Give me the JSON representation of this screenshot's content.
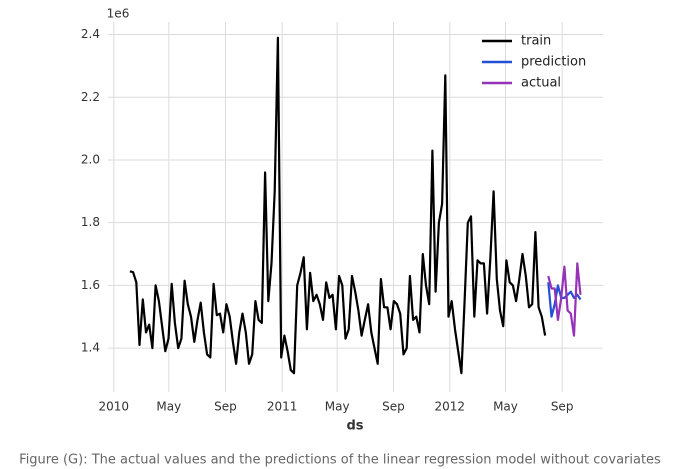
{
  "chart_data": {
    "type": "line",
    "xlabel": "ds",
    "y_offset_label": "1e6",
    "xlim": [
      -6.8,
      147
    ],
    "ylim": [
      1.26,
      2.44
    ],
    "xticks": [
      {
        "value": -5,
        "label": "2010"
      },
      {
        "value": 12.1,
        "label": "May"
      },
      {
        "value": 29.7,
        "label": "Sep"
      },
      {
        "value": 47.3,
        "label": "2011"
      },
      {
        "value": 64.4,
        "label": "May"
      },
      {
        "value": 81.9,
        "label": "Sep"
      },
      {
        "value": 99.4,
        "label": "2012"
      },
      {
        "value": 116.7,
        "label": "May"
      },
      {
        "value": 134.3,
        "label": "Sep"
      }
    ],
    "yticks": [
      1.4,
      1.6,
      1.8,
      {
        "value": 2,
        "label": "2.0"
      },
      2.2,
      2.4
    ],
    "grid": true,
    "legend": "upper right",
    "series": [
      {
        "name": "train",
        "color": "#000000",
        "x": [
          0,
          1,
          2,
          3,
          4,
          5,
          6,
          7,
          8,
          9,
          10,
          11,
          12,
          13,
          14,
          15,
          16,
          17,
          18,
          19,
          20,
          21,
          22,
          23,
          24,
          25,
          26,
          27,
          28,
          29,
          30,
          31,
          32,
          33,
          34,
          35,
          36,
          37,
          38,
          39,
          40,
          41,
          42,
          43,
          44,
          45,
          46,
          47,
          48,
          49,
          50,
          51,
          52,
          53,
          54,
          55,
          56,
          57,
          58,
          59,
          60,
          61,
          62,
          63,
          64,
          65,
          66,
          67,
          68,
          69,
          70,
          71,
          72,
          73,
          74,
          75,
          76,
          77,
          78,
          79,
          80,
          81,
          82,
          83,
          84,
          85,
          86,
          87,
          88,
          89,
          90,
          91,
          92,
          93,
          94,
          95,
          96,
          97,
          98,
          99,
          100,
          101,
          102,
          103,
          104,
          105,
          106,
          107,
          108,
          109,
          110,
          111,
          112,
          113,
          114,
          115,
          116,
          117,
          118,
          119,
          120,
          121,
          122,
          123,
          124,
          125,
          126,
          127,
          128,
          129
        ],
        "values": [
          1.645,
          1.642,
          1.61,
          1.41,
          1.555,
          1.45,
          1.475,
          1.4,
          1.6,
          1.55,
          1.47,
          1.39,
          1.43,
          1.605,
          1.48,
          1.4,
          1.43,
          1.615,
          1.54,
          1.5,
          1.42,
          1.49,
          1.545,
          1.45,
          1.38,
          1.37,
          1.605,
          1.505,
          1.51,
          1.45,
          1.54,
          1.5,
          1.42,
          1.35,
          1.45,
          1.51,
          1.45,
          1.35,
          1.38,
          1.55,
          1.49,
          1.48,
          1.96,
          1.55,
          1.67,
          1.9,
          2.39,
          1.37,
          1.44,
          1.39,
          1.33,
          1.32,
          1.6,
          1.64,
          1.69,
          1.46,
          1.64,
          1.55,
          1.57,
          1.54,
          1.49,
          1.61,
          1.56,
          1.57,
          1.46,
          1.63,
          1.6,
          1.43,
          1.46,
          1.63,
          1.58,
          1.52,
          1.44,
          1.49,
          1.54,
          1.45,
          1.4,
          1.35,
          1.62,
          1.53,
          1.53,
          1.46,
          1.55,
          1.54,
          1.51,
          1.38,
          1.4,
          1.63,
          1.49,
          1.5,
          1.45,
          1.7,
          1.6,
          1.54,
          2.03,
          1.58,
          1.8,
          1.86,
          2.27,
          1.5,
          1.55,
          1.46,
          1.39,
          1.32,
          1.55,
          1.8,
          1.82,
          1.5,
          1.68,
          1.67,
          1.67,
          1.51,
          1.69,
          1.9,
          1.62,
          1.52,
          1.47,
          1.68,
          1.61,
          1.6,
          1.55,
          1.62,
          1.7,
          1.63,
          1.53,
          1.54,
          1.77,
          1.53,
          1.5,
          1.44
        ]
      },
      {
        "name": "prediction",
        "color": "#2350d4",
        "x": [
          130,
          131,
          132,
          133,
          134,
          135,
          136,
          137,
          138,
          139,
          140
        ],
        "values": [
          1.61,
          1.5,
          1.54,
          1.6,
          1.56,
          1.56,
          1.57,
          1.58,
          1.56,
          1.57,
          1.555
        ]
      },
      {
        "name": "actual",
        "color": "#9632b8",
        "x": [
          130,
          131,
          132,
          133,
          134,
          135,
          136,
          137,
          138,
          139,
          140
        ],
        "values": [
          1.63,
          1.59,
          1.59,
          1.49,
          1.56,
          1.66,
          1.52,
          1.51,
          1.44,
          1.67,
          1.57
        ]
      }
    ]
  },
  "caption": "Figure (G): The actual values and the predictions of the linear regression model without covariates"
}
